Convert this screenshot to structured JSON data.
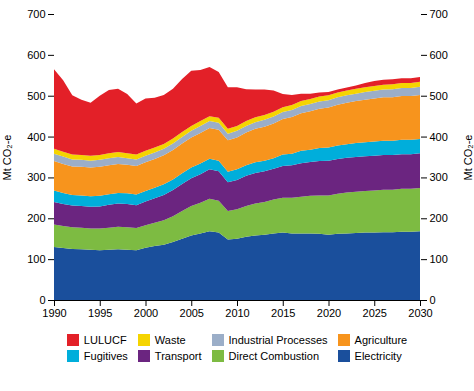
{
  "chart_data": {
    "type": "area",
    "stacked": true,
    "grid": false,
    "legend": "bottom",
    "ylabel": "Mt CO₂-e",
    "y2label": "Mt CO₂-e",
    "x": [
      1990,
      1991,
      1992,
      1993,
      1994,
      1995,
      1996,
      1997,
      1998,
      1999,
      2000,
      2001,
      2002,
      2003,
      2004,
      2005,
      2006,
      2007,
      2008,
      2009,
      2010,
      2011,
      2012,
      2013,
      2014,
      2015,
      2016,
      2017,
      2018,
      2019,
      2020,
      2021,
      2022,
      2023,
      2024,
      2025,
      2026,
      2027,
      2028,
      2029,
      2030
    ],
    "xlim": [
      1990,
      2030
    ],
    "xticks": [
      1990,
      1995,
      2000,
      2005,
      2010,
      2015,
      2020,
      2025,
      2030
    ],
    "ylim": [
      0,
      700
    ],
    "yticks": [
      0,
      100,
      200,
      300,
      400,
      500,
      600,
      700
    ],
    "y2lim": [
      0,
      700
    ],
    "y2ticks": [
      0,
      100,
      200,
      300,
      400,
      500,
      600,
      700
    ],
    "series": [
      {
        "name": "Electricity",
        "color": "#1a4f9c",
        "values": [
          130,
          127,
          125,
          124,
          123,
          122,
          123,
          124,
          123,
          122,
          128,
          132,
          135,
          142,
          150,
          158,
          163,
          168,
          165,
          148,
          150,
          155,
          158,
          160,
          163,
          165,
          163,
          163,
          163,
          162,
          160,
          162,
          163,
          164,
          165,
          165,
          166,
          166,
          167,
          167,
          168
        ]
      },
      {
        "name": "Direct Combustion",
        "color": "#7dbb42",
        "values": [
          55,
          54,
          53,
          53,
          52,
          53,
          54,
          55,
          55,
          54,
          55,
          57,
          60,
          63,
          68,
          72,
          75,
          80,
          78,
          70,
          72,
          75,
          78,
          80,
          83,
          85,
          87,
          90,
          92,
          94,
          96,
          98,
          100,
          101,
          102,
          103,
          104,
          104,
          105,
          105,
          106
        ]
      },
      {
        "name": "Transport",
        "color": "#6b2580",
        "values": [
          55,
          54,
          53,
          53,
          53,
          54,
          56,
          57,
          57,
          56,
          58,
          60,
          62,
          64,
          66,
          68,
          70,
          72,
          72,
          70,
          72,
          74,
          75,
          75,
          75,
          78,
          80,
          82,
          83,
          84,
          85,
          85,
          85,
          85,
          85,
          85,
          85,
          85,
          85,
          85,
          85
        ]
      },
      {
        "name": "Fugitives",
        "color": "#00aedb",
        "values": [
          28,
          27,
          26,
          26,
          26,
          26,
          26,
          26,
          26,
          26,
          26,
          26,
          26,
          26,
          26,
          26,
          26,
          26,
          26,
          26,
          26,
          26,
          26,
          26,
          26,
          28,
          28,
          30,
          30,
          32,
          32,
          33,
          33,
          34,
          34,
          35,
          35,
          35,
          35,
          35,
          35
        ]
      },
      {
        "name": "Agriculture",
        "color": "#f7941d",
        "values": [
          72,
          71,
          70,
          70,
          70,
          71,
          71,
          71,
          70,
          70,
          70,
          70,
          71,
          72,
          73,
          74,
          75,
          75,
          76,
          77,
          78,
          80,
          82,
          83,
          85,
          87,
          90,
          92,
          94,
          96,
          98,
          100,
          102,
          103,
          104,
          105,
          106,
          106,
          107,
          107,
          108
        ]
      },
      {
        "name": "Industrial Processes",
        "color": "#9baec8",
        "values": [
          18,
          18,
          17,
          17,
          17,
          17,
          17,
          17,
          16,
          16,
          16,
          16,
          16,
          16,
          16,
          16,
          17,
          17,
          17,
          16,
          16,
          16,
          16,
          17,
          17,
          17,
          17,
          18,
          18,
          18,
          18,
          18,
          18,
          18,
          19,
          19,
          19,
          20,
          20,
          20,
          20
        ]
      },
      {
        "name": "Waste",
        "color": "#f5d400",
        "values": [
          12,
          12,
          12,
          12,
          12,
          12,
          12,
          12,
          12,
          12,
          12,
          12,
          12,
          12,
          12,
          12,
          12,
          12,
          12,
          12,
          12,
          12,
          12,
          12,
          12,
          12,
          12,
          12,
          12,
          12,
          12,
          12,
          12,
          12,
          12,
          12,
          12,
          12,
          12,
          12,
          12
        ]
      },
      {
        "name": "LULUCF",
        "color": "#e32028",
        "values": [
          195,
          175,
          145,
          135,
          130,
          145,
          155,
          155,
          145,
          125,
          128,
          122,
          120,
          122,
          130,
          135,
          125,
          120,
          112,
          102,
          95,
          78,
          68,
          62,
          52,
          32,
          25,
          18,
          13,
          10,
          8,
          7,
          7,
          8,
          10,
          12,
          12,
          12,
          12,
          12,
          12
        ]
      }
    ]
  }
}
